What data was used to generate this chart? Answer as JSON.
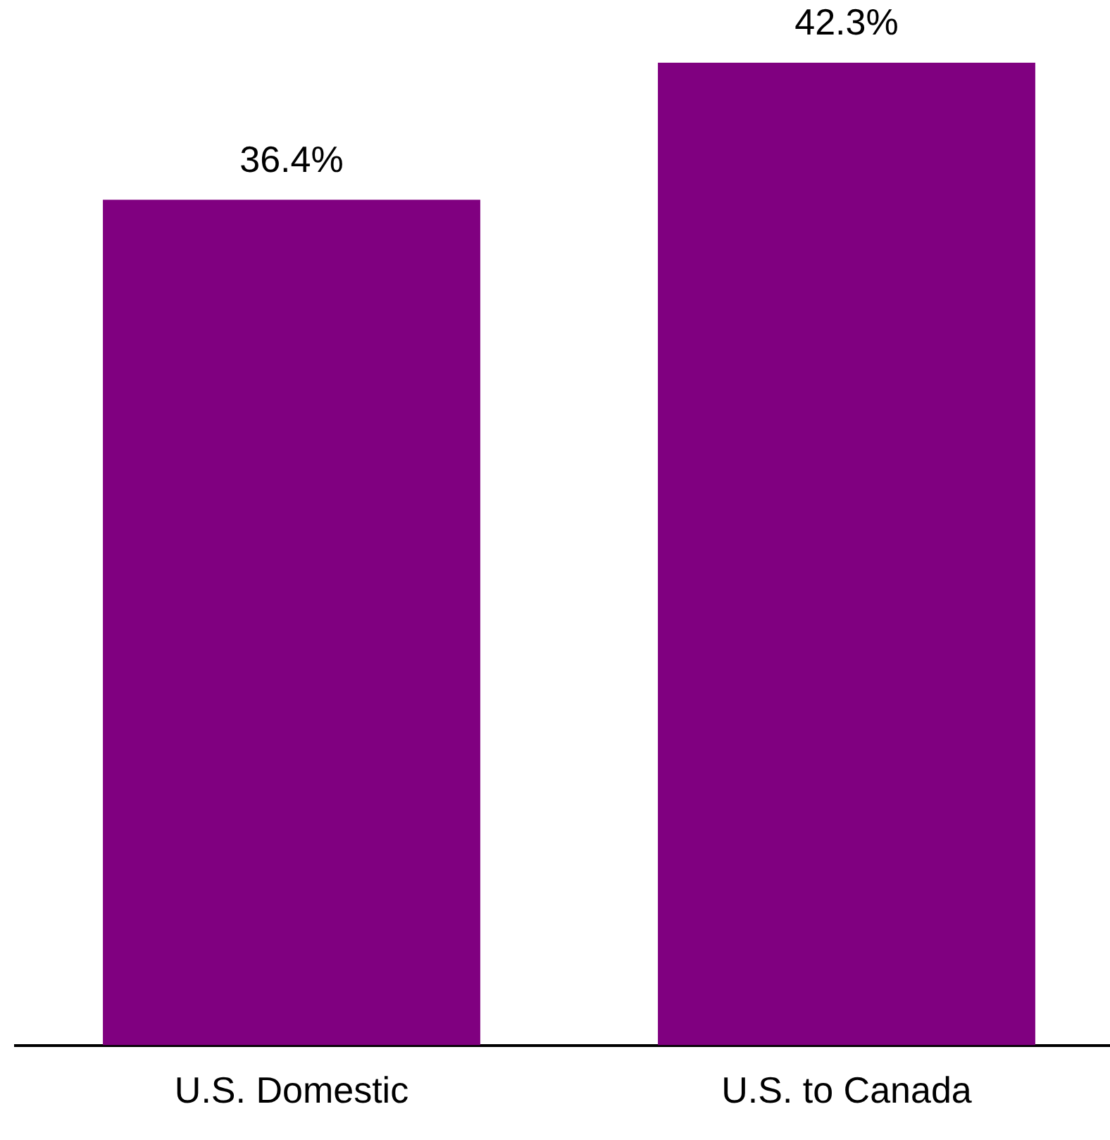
{
  "chart_data": {
    "type": "bar",
    "categories": [
      "U.S. Domestic",
      "U.S. to Canada"
    ],
    "values": [
      36.4,
      42.3
    ],
    "value_labels": [
      "36.4%",
      "42.3%"
    ],
    "color": "#800080",
    "tick_labels": "x",
    "grid": false,
    "legend": false
  }
}
